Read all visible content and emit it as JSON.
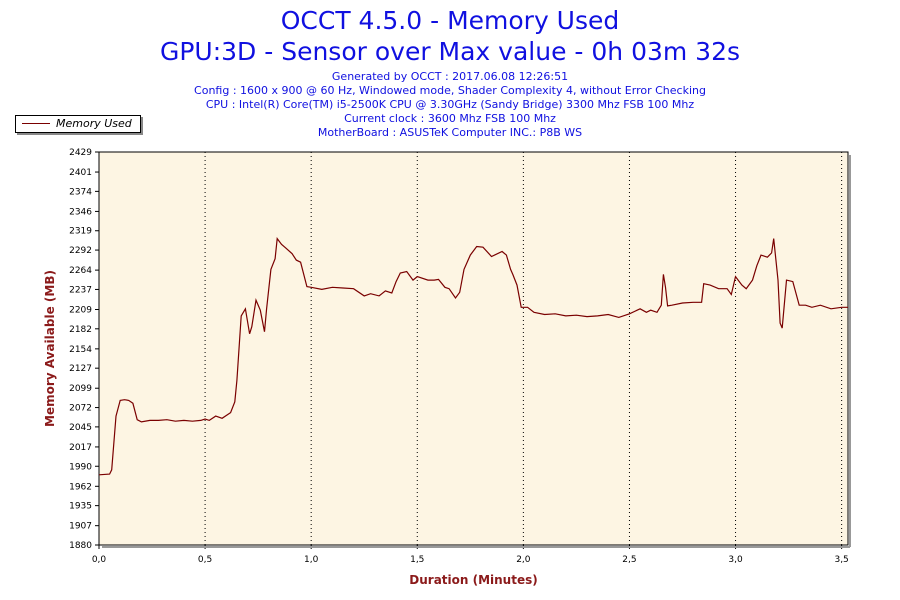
{
  "header": {
    "title": "OCCT 4.5.0 - Memory Used",
    "subtitle": "GPU:3D - Sensor over Max value - 0h 03m 32s",
    "info": [
      "Generated by OCCT : 2017.06.08 12:26:51",
      "Config : 1600 x 900 @ 60 Hz, Windowed mode, Shader Complexity 4, without Error Checking",
      "CPU : Intel(R) Core(TM) i5-2500K CPU @ 3.30GHz (Sandy Bridge) 3300 Mhz FSB 100 Mhz",
      "Current clock : 3600 Mhz FSB 100 Mhz",
      "MotherBoard : ASUSTeK Computer INC.: P8B WS"
    ]
  },
  "legend": {
    "label": "Memory Used"
  },
  "colors": {
    "title": "#1010e0",
    "line": "#7a0000",
    "plot_bg": "#fdf5e3",
    "axis_label": "#8b1a1a"
  },
  "chart_data": {
    "type": "line",
    "xlabel": "Duration (Minutes)",
    "ylabel": "Memory Available (MB)",
    "xlim": [
      0,
      3.53
    ],
    "ylim": [
      1880,
      2429
    ],
    "xticks": [
      "0,0",
      "0,5",
      "1,0",
      "1,5",
      "2,0",
      "2,5",
      "3,0",
      "3,5"
    ],
    "xtick_values": [
      0,
      0.5,
      1.0,
      1.5,
      2.0,
      2.5,
      3.0,
      3.5
    ],
    "yticks": [
      "2429",
      "2401",
      "2374",
      "2346",
      "2319",
      "2292",
      "2264",
      "2237",
      "2209",
      "2182",
      "2154",
      "2127",
      "2099",
      "2072",
      "2045",
      "2017",
      "1990",
      "1962",
      "1935",
      "1907",
      "1880"
    ],
    "ytick_values": [
      2429,
      2401,
      2374,
      2346,
      2319,
      2292,
      2264,
      2237,
      2209,
      2182,
      2154,
      2127,
      2099,
      2072,
      2045,
      2017,
      1990,
      1962,
      1935,
      1907,
      1880
    ],
    "grid": {
      "vertical": true,
      "horizontal": false
    },
    "legend_position": "top-left",
    "series": [
      {
        "name": "Memory Used",
        "x": [
          0,
          0.05,
          0.06,
          0.08,
          0.1,
          0.12,
          0.14,
          0.16,
          0.18,
          0.2,
          0.24,
          0.28,
          0.32,
          0.36,
          0.4,
          0.44,
          0.48,
          0.5,
          0.52,
          0.55,
          0.58,
          0.62,
          0.64,
          0.65,
          0.67,
          0.69,
          0.71,
          0.72,
          0.74,
          0.76,
          0.78,
          0.79,
          0.81,
          0.83,
          0.84,
          0.86,
          0.88,
          0.91,
          0.93,
          0.95,
          0.98,
          1.0,
          1.05,
          1.1,
          1.15,
          1.2,
          1.25,
          1.28,
          1.32,
          1.35,
          1.38,
          1.4,
          1.42,
          1.45,
          1.48,
          1.5,
          1.55,
          1.58,
          1.6,
          1.63,
          1.65,
          1.68,
          1.7,
          1.72,
          1.75,
          1.78,
          1.81,
          1.85,
          1.9,
          1.92,
          1.94,
          1.95,
          1.97,
          1.99,
          2.02,
          2.05,
          2.1,
          2.15,
          2.2,
          2.25,
          2.3,
          2.35,
          2.4,
          2.45,
          2.5,
          2.55,
          2.58,
          2.6,
          2.63,
          2.65,
          2.66,
          2.67,
          2.68,
          2.7,
          2.75,
          2.8,
          2.84,
          2.85,
          2.88,
          2.92,
          2.96,
          2.98,
          3.0,
          3.03,
          3.05,
          3.08,
          3.1,
          3.12,
          3.15,
          3.17,
          3.18,
          3.2,
          3.21,
          3.22,
          3.24,
          3.27,
          3.3,
          3.33,
          3.36,
          3.4,
          3.45,
          3.5,
          3.53
        ],
        "y": [
          1978,
          1979,
          1985,
          2060,
          2082,
          2083,
          2082,
          2078,
          2055,
          2052,
          2054,
          2054,
          2055,
          2053,
          2054,
          2053,
          2054,
          2056,
          2054,
          2060,
          2057,
          2065,
          2080,
          2110,
          2200,
          2210,
          2175,
          2185,
          2222,
          2208,
          2178,
          2210,
          2265,
          2280,
          2308,
          2300,
          2295,
          2287,
          2278,
          2275,
          2241,
          2240,
          2237,
          2240,
          2239,
          2238,
          2228,
          2231,
          2228,
          2235,
          2232,
          2248,
          2260,
          2262,
          2250,
          2255,
          2250,
          2250,
          2251,
          2240,
          2238,
          2225,
          2233,
          2265,
          2285,
          2297,
          2296,
          2283,
          2290,
          2285,
          2265,
          2258,
          2243,
          2212,
          2212,
          2205,
          2202,
          2203,
          2200,
          2201,
          2199,
          2200,
          2202,
          2198,
          2203,
          2210,
          2205,
          2208,
          2205,
          2215,
          2258,
          2240,
          2214,
          2215,
          2218,
          2219,
          2219,
          2245,
          2243,
          2238,
          2238,
          2230,
          2255,
          2243,
          2238,
          2250,
          2270,
          2285,
          2282,
          2288,
          2308,
          2250,
          2190,
          2183,
          2250,
          2248,
          2215,
          2215,
          2212,
          2215,
          2210,
          2212,
          2212
        ]
      }
    ]
  }
}
